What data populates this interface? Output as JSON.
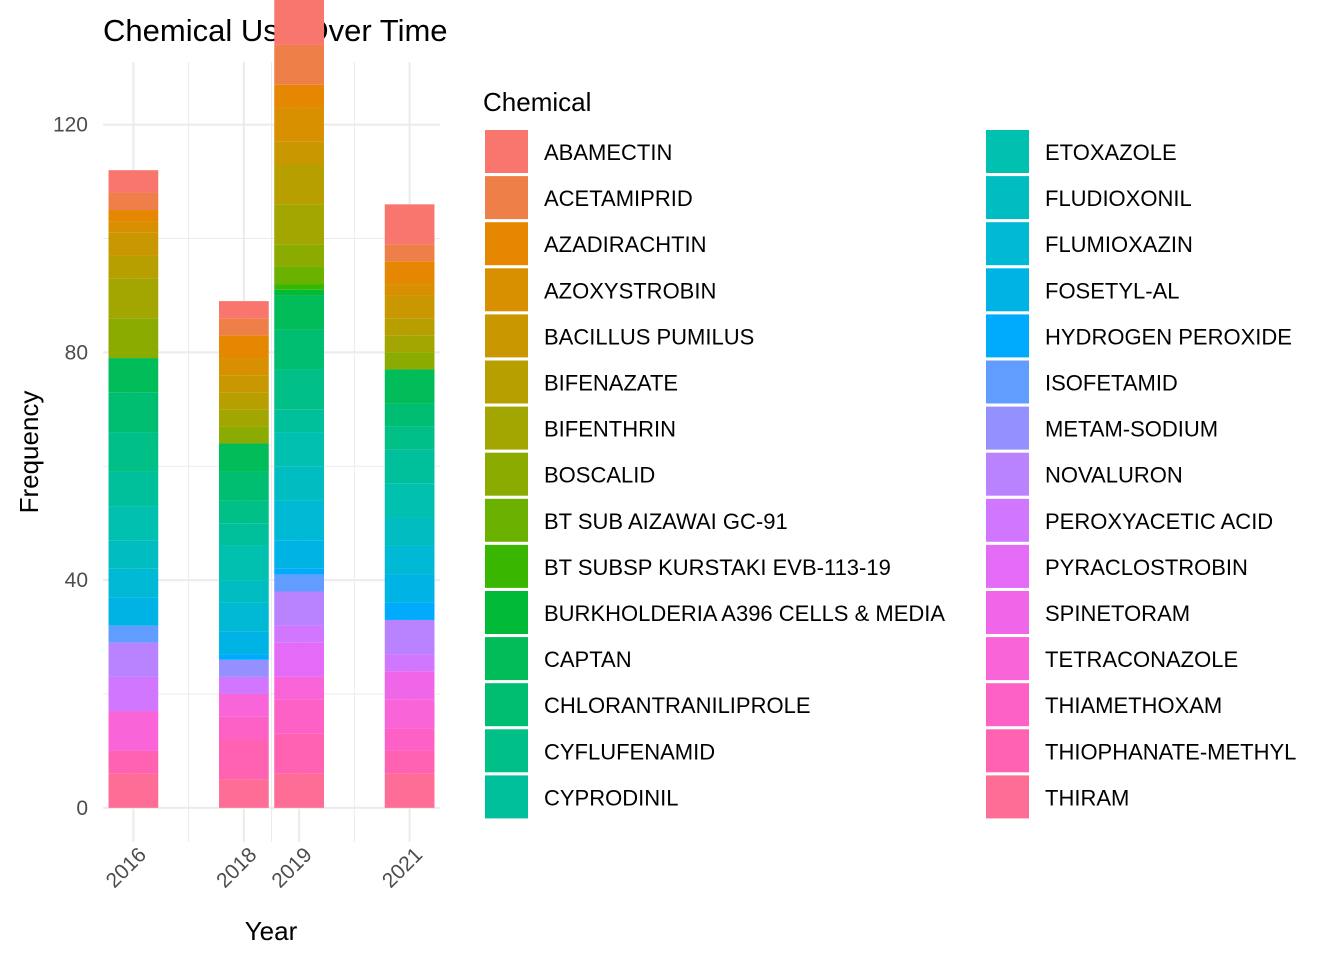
{
  "chart_data": {
    "type": "bar",
    "stacked": true,
    "title": "Chemical Use Over Time",
    "xlabel": "Year",
    "ylabel": "Frequency",
    "x": [
      "2016",
      "2018",
      "2019",
      "2021"
    ],
    "x_numeric": [
      2016,
      2018,
      2019,
      2021
    ],
    "xlim": [
      2015.45,
      2021.55
    ],
    "ylim": [
      -6,
      131
    ],
    "yticks": [
      0,
      40,
      80,
      120
    ],
    "grid": true,
    "legend_title": "Chemical",
    "legend_position": "right",
    "series": [
      {
        "name": "ABAMECTIN",
        "color": "#F8766D",
        "values": [
          4,
          3,
          8,
          7
        ]
      },
      {
        "name": "ACETAMIPRID",
        "color": "#EF7F49",
        "values": [
          3,
          3,
          7,
          3
        ]
      },
      {
        "name": "AZADIRACHTIN",
        "color": "#E58700",
        "values": [
          2,
          4,
          4,
          4
        ]
      },
      {
        "name": "AZOXYSTROBIN",
        "color": "#D89000",
        "values": [
          2,
          3,
          6,
          2
        ]
      },
      {
        "name": "BACILLUS PUMILUS",
        "color": "#C99800",
        "values": [
          4,
          3,
          4,
          4
        ]
      },
      {
        "name": "BIFENAZATE",
        "color": "#B79F00",
        "values": [
          4,
          3,
          7,
          3
        ]
      },
      {
        "name": "BIFENTHRIN",
        "color": "#A3A500",
        "values": [
          7,
          3,
          7,
          3
        ]
      },
      {
        "name": "BOSCALID",
        "color": "#8BAB00",
        "values": [
          7,
          3,
          4,
          3
        ]
      },
      {
        "name": "BT SUB AIZAWAI GC-91",
        "color": "#6BB100",
        "values": [
          0,
          0,
          3,
          0
        ]
      },
      {
        "name": "BT SUBSP KURSTAKI EVB-113-19",
        "color": "#39B600",
        "values": [
          0,
          0,
          1,
          0
        ]
      },
      {
        "name": "BURKHOLDERIA A396 CELLS & MEDIA",
        "color": "#00BA38",
        "values": [
          0,
          0,
          1,
          0
        ]
      },
      {
        "name": "CAPTAN",
        "color": "#00BC59",
        "values": [
          6,
          5,
          6,
          6
        ]
      },
      {
        "name": "CHLORANTRANILIPROLE",
        "color": "#00BE71",
        "values": [
          7,
          5,
          7,
          4
        ]
      },
      {
        "name": "CYFLUFENAMID",
        "color": "#00C087",
        "values": [
          7,
          4,
          7,
          4
        ]
      },
      {
        "name": "CYPRODINIL",
        "color": "#00C09B",
        "values": [
          6,
          4,
          4,
          6
        ]
      },
      {
        "name": "ETOXAZOLE",
        "color": "#00C0AF",
        "values": [
          6,
          6,
          6,
          6
        ]
      },
      {
        "name": "FLUDIOXONIL",
        "color": "#00BDC2",
        "values": [
          5,
          4,
          6,
          5
        ]
      },
      {
        "name": "FLUMIOXAZIN",
        "color": "#00B9D4",
        "values": [
          5,
          5,
          7,
          5
        ]
      },
      {
        "name": "FOSETYL-AL",
        "color": "#00B3E5",
        "values": [
          5,
          4,
          5,
          5
        ]
      },
      {
        "name": "HYDROGEN PEROXIDE",
        "color": "#00ABFD",
        "values": [
          0,
          1,
          1,
          3
        ]
      },
      {
        "name": "ISOFETAMID",
        "color": "#619CFF",
        "values": [
          3,
          0,
          3,
          0
        ]
      },
      {
        "name": "METAM-SODIUM",
        "color": "#9590FF",
        "values": [
          0,
          3,
          0,
          0
        ]
      },
      {
        "name": "NOVALURON",
        "color": "#B983FF",
        "values": [
          6,
          0,
          6,
          6
        ]
      },
      {
        "name": "PEROXYACETIC ACID",
        "color": "#D177FF",
        "values": [
          6,
          3,
          3,
          3
        ]
      },
      {
        "name": "PYRACLOSTROBIN",
        "color": "#E46BF6",
        "values": [
          0,
          0,
          6,
          0
        ]
      },
      {
        "name": "SPINETORAM",
        "color": "#F066E8",
        "values": [
          0,
          0,
          0,
          5
        ]
      },
      {
        "name": "TETRACONAZOLE",
        "color": "#F964D8",
        "values": [
          7,
          4,
          4,
          5
        ]
      },
      {
        "name": "THIAMETHOXAM",
        "color": "#FD61C6",
        "values": [
          0,
          4,
          6,
          4
        ]
      },
      {
        "name": "THIOPHANATE-METHYL",
        "color": "#FF62B0",
        "values": [
          4,
          7,
          7,
          4
        ]
      },
      {
        "name": "THIRAM",
        "color": "#FE6D95",
        "values": [
          6,
          5,
          6,
          6
        ]
      }
    ]
  }
}
